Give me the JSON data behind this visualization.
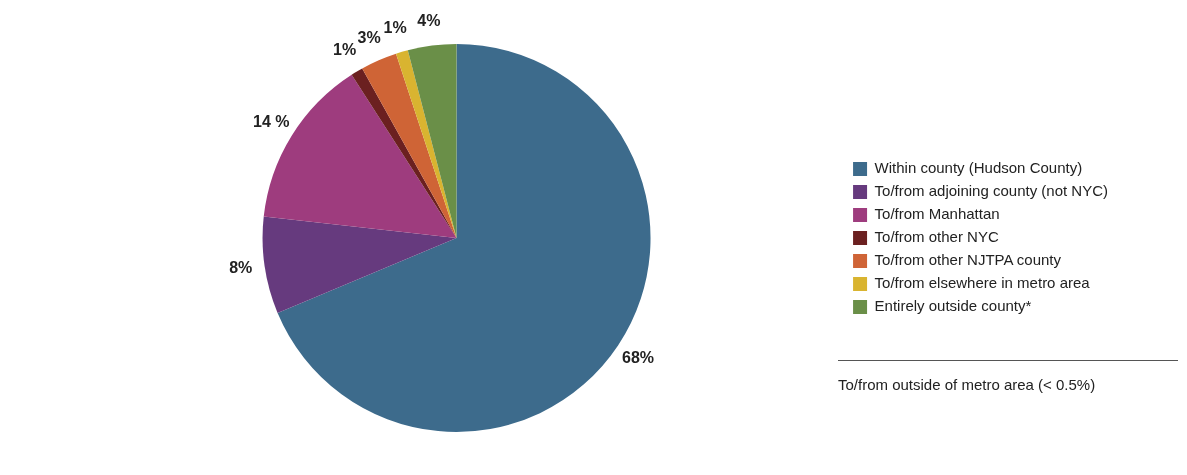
{
  "chart_data": {
    "type": "pie",
    "categories": [
      "Within county (Hudson County)",
      "To/from adjoining county (not NYC)",
      "To/from Manhattan",
      "To/from other NYC",
      "To/from other NJTPA county",
      "To/from elsewhere in metro area",
      "Entirely outside county*"
    ],
    "values": [
      68,
      8,
      14,
      1,
      3,
      1,
      4
    ],
    "value_labels": [
      "68%",
      "8%",
      "14 %",
      "1%",
      "3%",
      "1%",
      "4%"
    ],
    "colors": [
      "#3d6b8c",
      "#663a7e",
      "#9e3c7e",
      "#6b2020",
      "#cf6436",
      "#d9b430",
      "#6a8f48"
    ],
    "legend": "right",
    "annotations": [
      "To/from outside of metro area (< 0.5%)"
    ]
  }
}
